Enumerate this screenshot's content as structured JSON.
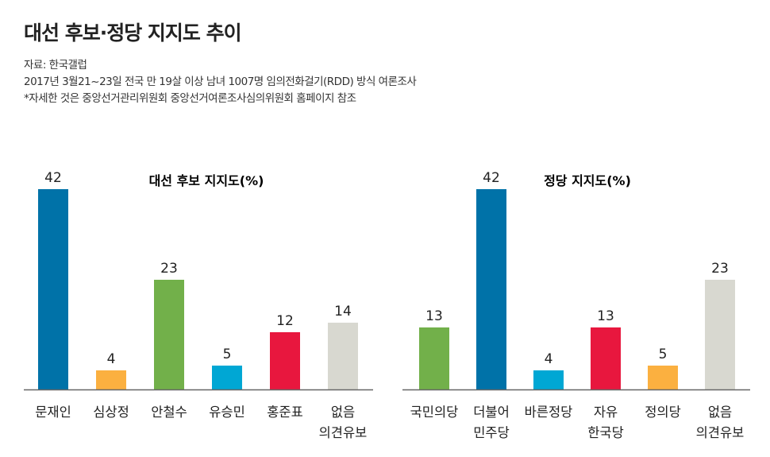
{
  "title": "대선 후보·정당 지지도 추이",
  "source": "자료: 한국갤럽",
  "note1": "2017년 3월21~23일 전국 만 19살 이상 남녀 1007명 임의전화걸기(RDD) 방식 여론조사",
  "note2": "*자세한 것은 중앙선거관리위원회 중앙선거여론조사심의위원회 홈페이지 참조",
  "chart_data": [
    {
      "type": "bar",
      "title": "대선 후보 지지도(%)",
      "categories": [
        [
          "문재인"
        ],
        [
          "심상정"
        ],
        [
          "안철수"
        ],
        [
          "유승민"
        ],
        [
          "홍준표"
        ],
        [
          "없음",
          "의견유보"
        ]
      ],
      "values": [
        42,
        4,
        23,
        5,
        12,
        14
      ],
      "colors": [
        "#0072a8",
        "#fbb040",
        "#72b04a",
        "#00a7d4",
        "#e8173e",
        "#d8d8d0"
      ],
      "ylim": [
        0,
        42
      ],
      "grid": false
    },
    {
      "type": "bar",
      "title": "정당 지지도(%)",
      "categories": [
        [
          "국민의당"
        ],
        [
          "더불어",
          "민주당"
        ],
        [
          "바른정당"
        ],
        [
          "자유",
          "한국당"
        ],
        [
          "정의당"
        ],
        [
          "없음",
          "의견유보"
        ]
      ],
      "values": [
        13,
        42,
        4,
        13,
        5,
        23
      ],
      "colors": [
        "#72b04a",
        "#0072a8",
        "#00a7d4",
        "#e8173e",
        "#fbb040",
        "#d8d8d0"
      ],
      "ylim": [
        0,
        42
      ],
      "grid": false
    }
  ]
}
